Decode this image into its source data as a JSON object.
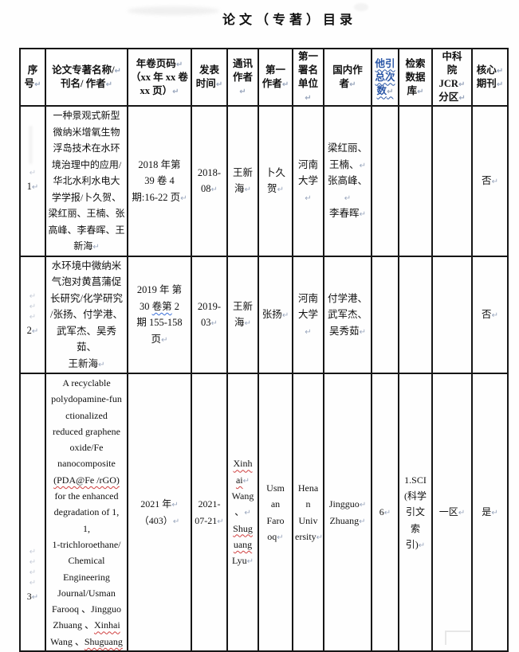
{
  "page": {
    "title": "论文（专著）目录"
  },
  "colors": {
    "insert_blue": "#2b57a7",
    "spellcheck_red": "#d04040",
    "grammar_blue": "#3a6fd8",
    "paragraph_mark_gray": "#9aa7bd",
    "border_black": "#161616"
  },
  "table": {
    "headers": {
      "no": "序\n号↵",
      "title": "论文专著名称/↵\n刊名/ 作者↵",
      "volume": "年卷页码↵\n（xx 年 xx 卷\nxx 页）↵",
      "date": "发表\n时间↵",
      "corr_author": "通讯\n作者↵",
      "first_author": "第一\n作者↵",
      "first_affiliation": "第一\n署名\n单位↵",
      "domestic_authors": "国内作\n者↵",
      "citations": "他引\n总次\n数↵",
      "index_db": "检索\n数据\n库↵",
      "cas_jcr": "中科\n院\nJCR↵\n分区↵",
      "core_journal": "核心↵\n期刊↵"
    },
    "rows": [
      {
        "no": "1↵",
        "ghost": "↵",
        "title": "一种景观式新型\n微纳米增氧生物\n浮岛技术在水环\n境治理中的应用/\n华北水利水电大\n学学报/卜久贺、\n梁红丽、王楠、张\n高峰、李春晖、王\n新海↵",
        "volume": "2018 年第\n39 卷 4\n期:16-22 页↵",
        "date": "2018-\n08↵",
        "corr_author": "王新\n海↵",
        "first_author": "卜久\n贺↵",
        "first_affiliation": "河南\n大学↵",
        "domestic_authors": "梁红丽、\n王楠、↵\n张高峰、↵\n李春晖↵",
        "citations": "",
        "index_db": "",
        "cas_jcr": "",
        "core_journal": "否↵"
      },
      {
        "no": "2↵",
        "ghost": "↵\n↵\n↵",
        "title": "水环境中微纳米\n气泡对黄菖蒲促\n长研究/化学研究\n/张扬、付学港、\n武军杰、吴秀茹、\n王新海↵",
        "volume": [
          {
            "t": "2019 年 第\n30 "
          },
          {
            "t": "卷第",
            "m": "grammar"
          },
          {
            "t": " 2\n期 155-158\n页↵"
          }
        ],
        "date": "2019-\n03↵",
        "corr_author": "王新\n海↵",
        "first_author": "张扬↵",
        "first_affiliation": "河南\n大学↵",
        "domestic_authors": "付学港、\n武军杰、\n吴秀茹↵",
        "citations": "",
        "index_db": "",
        "cas_jcr": "",
        "core_journal": "否↵"
      },
      {
        "no": "3↵",
        "ghost": "↵\n↵\n↵\n↵",
        "title": [
          {
            "t": "A recyclable\npolydopamine-fun\nctionalized\nreduced graphene\noxide/Fe\nnanocomposite\n"
          },
          {
            "t": "(PDA@Fe /rGO)",
            "m": "spell"
          },
          {
            "t": "\nfor the enhanced\ndegradation of 1,\n1,\n1-trichloroethane/\nChemical\nEngineering\nJournal/Usman\nFarooq 、Jingguo\nZhuang 、"
          },
          {
            "t": "Xinhai",
            "m": "spell"
          },
          {
            "t": "\nWang 、"
          },
          {
            "t": "Shuguang",
            "m": "spell"
          }
        ],
        "volume": "2021 年↵\n（403）↵",
        "date": "2021-\n07-21↵",
        "corr_author": [
          {
            "t": "Xinh\nai",
            "m": "spell"
          },
          {
            "t": "↵\nWang\n、↵\n"
          },
          {
            "t": "Shug\nuang",
            "m": "spell"
          },
          {
            "t": "\nLyu↵"
          }
        ],
        "first_author": "Usm\nan\nFaro\noq↵",
        "first_affiliation": "Hena\nn\nUniv\nersity↵",
        "domestic_authors": "Jingguo↵\nZhuang↵",
        "citations": "6↵",
        "index_db": "1.SCI\n(科学\n引文\n索引)↵",
        "cas_jcr": "一区↵",
        "core_journal": "是↵"
      }
    ]
  }
}
